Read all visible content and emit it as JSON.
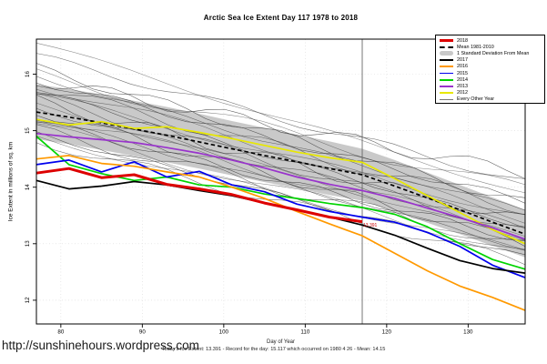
{
  "page": {
    "title": "Arctic Sea Ice Extent Day 117 1978 to 2018",
    "url_watermark": "http://sunshinehours.wordpress.com",
    "footer_text": "Today's Ice Extent: 13.391  -  Record for the day: 15.117 which occurred on 1980 4 26  -  Mean: 14.15",
    "footer_values": {
      "todays_ice_extent": "13.391",
      "record_for_day": "15.117",
      "record_date": "1980 4 26",
      "mean": "14.15"
    }
  },
  "chart_data": {
    "type": "line",
    "title": "Arctic Sea Ice Extent Day 117 1978 to 2018",
    "xlabel": "Day of Year",
    "ylabel": "Ice Extent in millions of sq. km",
    "xlim": [
      77,
      137
    ],
    "ylim": [
      11.58,
      16.62
    ],
    "xticks": [
      80,
      90,
      100,
      110,
      120,
      130
    ],
    "yticks": [
      12,
      13,
      14,
      15,
      16
    ],
    "grid": "dotted",
    "legend_position": "top-right",
    "marker_day": 117,
    "marker_color": "#666666",
    "grid_color": "#d9d9d9",
    "days": [
      77,
      81,
      85,
      89,
      93,
      97,
      101,
      105,
      109,
      113,
      117,
      121,
      125,
      129,
      133,
      137
    ],
    "band": {
      "label": "1 Standard Deviation From Mean",
      "color": "#c9c9c9",
      "top": [
        15.82,
        15.74,
        15.64,
        15.53,
        15.42,
        15.3,
        15.17,
        15.05,
        14.93,
        14.81,
        14.68,
        14.48,
        14.26,
        14.04,
        13.82,
        13.6
      ],
      "bottom": [
        14.85,
        14.76,
        14.66,
        14.55,
        14.44,
        14.33,
        14.21,
        14.09,
        13.98,
        13.86,
        13.76,
        13.57,
        13.37,
        13.17,
        12.96,
        12.76
      ]
    },
    "mean_line": {
      "label": "Mean 1981-2010",
      "color": "#000000",
      "style": "dashed",
      "values": [
        15.33,
        15.24,
        15.14,
        15.03,
        14.92,
        14.8,
        14.68,
        14.56,
        14.45,
        14.33,
        14.22,
        14.02,
        13.81,
        13.6,
        13.38,
        13.17
      ]
    },
    "series": [
      {
        "name": "2012",
        "color": "#e8e800",
        "width": 1.7,
        "values": [
          15.2,
          15.1,
          15.16,
          15.04,
          15.07,
          14.97,
          14.86,
          14.74,
          14.62,
          14.52,
          14.44,
          14.15,
          13.85,
          13.55,
          13.25,
          13.0
        ]
      },
      {
        "name": "2013",
        "color": "#9933cc",
        "width": 1.7,
        "values": [
          14.95,
          14.89,
          14.84,
          14.79,
          14.7,
          14.6,
          14.48,
          14.34,
          14.18,
          14.05,
          13.94,
          13.8,
          13.63,
          13.46,
          13.28,
          13.08
        ]
      },
      {
        "name": "2014",
        "color": "#00d400",
        "width": 1.7,
        "values": [
          14.9,
          14.4,
          14.24,
          14.12,
          14.18,
          14.04,
          14.0,
          13.88,
          13.8,
          13.71,
          13.64,
          13.52,
          13.3,
          13.0,
          12.72,
          12.55
        ]
      },
      {
        "name": "2015",
        "color": "#0000ee",
        "width": 1.7,
        "values": [
          14.4,
          14.48,
          14.27,
          14.45,
          14.18,
          14.28,
          14.04,
          13.92,
          13.7,
          13.57,
          13.47,
          13.38,
          13.2,
          12.95,
          12.62,
          12.4
        ]
      },
      {
        "name": "2016",
        "color": "#ff9900",
        "width": 1.7,
        "values": [
          14.5,
          14.56,
          14.42,
          14.37,
          14.27,
          14.18,
          14.0,
          13.8,
          13.57,
          13.35,
          13.14,
          12.83,
          12.52,
          12.25,
          12.05,
          11.82
        ]
      },
      {
        "name": "2017",
        "color": "#000000",
        "width": 1.7,
        "values": [
          14.12,
          13.97,
          14.02,
          14.1,
          14.04,
          13.94,
          13.85,
          13.72,
          13.6,
          13.47,
          13.33,
          13.15,
          12.92,
          12.7,
          12.56,
          12.48
        ]
      },
      {
        "name": "2018",
        "color": "#dd0000",
        "width": 3,
        "annotation": "13.391",
        "values": [
          14.25,
          14.33,
          14.17,
          14.22,
          14.05,
          13.97,
          13.87,
          13.72,
          13.6,
          13.47,
          13.39,
          null,
          null,
          null,
          null,
          null
        ]
      }
    ],
    "background_years": {
      "label": "Every Other Year",
      "color": "#3c3c3c",
      "lines": [
        [
          16.55,
          13.9
        ],
        [
          16.32,
          14.1
        ],
        [
          16.1,
          13.72
        ],
        [
          16.0,
          13.95
        ],
        [
          15.95,
          13.58
        ],
        [
          15.88,
          13.75
        ],
        [
          15.82,
          13.45
        ],
        [
          15.76,
          13.62
        ],
        [
          15.7,
          13.3
        ],
        [
          15.64,
          13.5
        ],
        [
          15.58,
          13.22
        ],
        [
          15.52,
          13.4
        ],
        [
          15.46,
          13.1
        ],
        [
          15.4,
          13.28
        ],
        [
          15.34,
          13.02
        ],
        [
          15.28,
          13.18
        ],
        [
          15.22,
          12.92
        ],
        [
          15.16,
          13.06
        ],
        [
          15.08,
          12.85
        ],
        [
          15.0,
          12.95
        ],
        [
          14.94,
          12.76
        ],
        [
          14.88,
          12.86
        ],
        [
          14.82,
          12.66
        ],
        [
          15.9,
          14.25
        ]
      ]
    },
    "legend": [
      {
        "label": "2018",
        "color": "#dd0000",
        "style": "thick"
      },
      {
        "label": "Mean 1981-2010",
        "color": "#000000",
        "style": "dashed"
      },
      {
        "label": "1 Standard Deviation From Mean",
        "color": "#c9c9c9",
        "style": "band"
      },
      {
        "label": "2017",
        "color": "#000000",
        "style": "line"
      },
      {
        "label": "2016",
        "color": "#ff9900",
        "style": "line"
      },
      {
        "label": "2015",
        "color": "#0000ee",
        "style": "line"
      },
      {
        "label": "2014",
        "color": "#00d400",
        "style": "line"
      },
      {
        "label": "2013",
        "color": "#9933cc",
        "style": "line"
      },
      {
        "label": "2012",
        "color": "#e8e800",
        "style": "line"
      },
      {
        "label": "Every Other Year",
        "color": "#777777",
        "style": "thin"
      }
    ]
  }
}
